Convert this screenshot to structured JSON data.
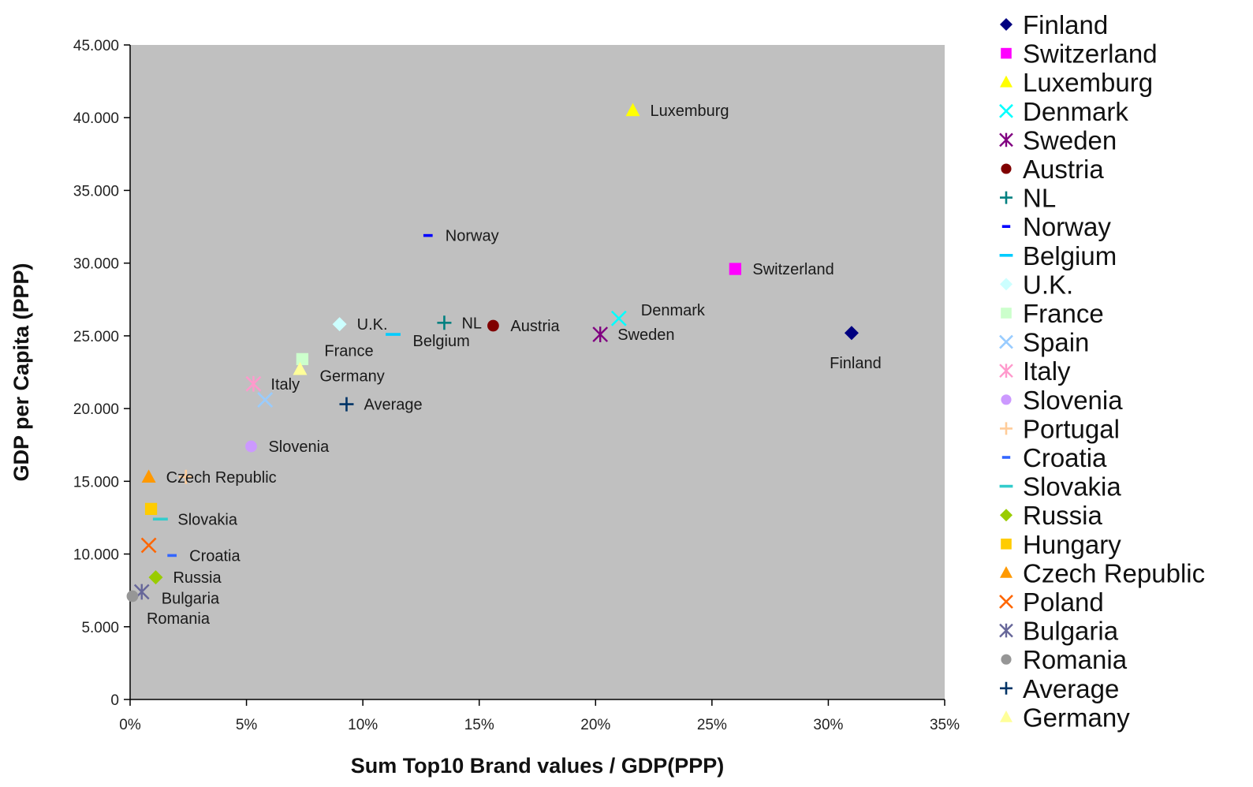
{
  "chart_data": {
    "type": "scatter",
    "xlabel": "Sum Top10 Brand values / GDP(PPP)",
    "ylabel": "GDP per Capita (PPP)",
    "xlim": [
      0,
      35
    ],
    "ylim": [
      0,
      45000
    ],
    "x_ticks": [
      {
        "value": 0,
        "label": "0%"
      },
      {
        "value": 5,
        "label": "5%"
      },
      {
        "value": 10,
        "label": "10%"
      },
      {
        "value": 15,
        "label": "15%"
      },
      {
        "value": 20,
        "label": "20%"
      },
      {
        "value": 25,
        "label": "25%"
      },
      {
        "value": 30,
        "label": "30%"
      },
      {
        "value": 35,
        "label": "35%"
      }
    ],
    "y_ticks": [
      {
        "value": 0,
        "label": "0"
      },
      {
        "value": 5000,
        "label": "5.000"
      },
      {
        "value": 10000,
        "label": "10.000"
      },
      {
        "value": 15000,
        "label": "15.000"
      },
      {
        "value": 20000,
        "label": "20.000"
      },
      {
        "value": 25000,
        "label": "25.000"
      },
      {
        "value": 30000,
        "label": "30.000"
      },
      {
        "value": 35000,
        "label": "35.000"
      },
      {
        "value": 40000,
        "label": "40.000"
      },
      {
        "value": 45000,
        "label": "45.000"
      }
    ],
    "grid": false,
    "background": "#c0c0c0",
    "legend_position": "right",
    "series": [
      {
        "name": "Finland",
        "marker": "diamond",
        "color": "#000080",
        "x": 31.0,
        "y": 25200,
        "label": "Finland",
        "label_pos": "below"
      },
      {
        "name": "Switzerland",
        "marker": "square",
        "color": "#ff00ff",
        "x": 26.0,
        "y": 29600,
        "label": "Switzerland",
        "label_pos": "right"
      },
      {
        "name": "Luxemburg",
        "marker": "triangle",
        "color": "#ffff00",
        "x": 21.6,
        "y": 40500,
        "label": "Luxemburg",
        "label_pos": "right"
      },
      {
        "name": "Denmark",
        "marker": "x",
        "color": "#00ffff",
        "x": 21.0,
        "y": 26200,
        "label": "Denmark",
        "label_pos": "upright"
      },
      {
        "name": "Sweden",
        "marker": "star",
        "color": "#800080",
        "x": 20.2,
        "y": 25100,
        "label": "Sweden",
        "label_pos": "right"
      },
      {
        "name": "Austria",
        "marker": "circle",
        "color": "#800000",
        "x": 15.6,
        "y": 25700,
        "label": "Austria",
        "label_pos": "right"
      },
      {
        "name": "NL",
        "marker": "plus",
        "color": "#008080",
        "x": 13.5,
        "y": 25900,
        "label": "NL",
        "label_pos": "right"
      },
      {
        "name": "Norway",
        "marker": "dash-short",
        "color": "#0000ff",
        "x": 12.8,
        "y": 31900,
        "label": "Norway",
        "label_pos": "right"
      },
      {
        "name": "Belgium",
        "marker": "dash",
        "color": "#00ccff",
        "x": 11.3,
        "y": 25100,
        "label": "Belgium",
        "label_pos": "belowright"
      },
      {
        "name": "U.K.",
        "marker": "diamond",
        "color": "#ccffff",
        "x": 9.0,
        "y": 25800,
        "label": "U.K.",
        "label_pos": "right"
      },
      {
        "name": "France",
        "marker": "square",
        "color": "#ccffcc",
        "x": 7.4,
        "y": 23400,
        "label": "France",
        "label_pos": "upright"
      },
      {
        "name": "Spain",
        "marker": "x",
        "color": "#99ccff",
        "x": 5.8,
        "y": 20600,
        "label": "",
        "label_pos": "none"
      },
      {
        "name": "Italy",
        "marker": "star",
        "color": "#ff99cc",
        "x": 5.3,
        "y": 21700,
        "label": "Italy",
        "label_pos": "right"
      },
      {
        "name": "Slovenia",
        "marker": "circle",
        "color": "#cc99ff",
        "x": 5.2,
        "y": 17400,
        "label": "Slovenia",
        "label_pos": "right"
      },
      {
        "name": "Portugal",
        "marker": "plus",
        "color": "#ffcc99",
        "x": 2.4,
        "y": 15300,
        "label": "",
        "label_pos": "none"
      },
      {
        "name": "Croatia",
        "marker": "dash-short",
        "color": "#3366ff",
        "x": 1.8,
        "y": 9900,
        "label": "Croatia",
        "label_pos": "right"
      },
      {
        "name": "Slovakia",
        "marker": "dash",
        "color": "#33cccc",
        "x": 1.3,
        "y": 12400,
        "label": "Slovakia",
        "label_pos": "right"
      },
      {
        "name": "Russia",
        "marker": "diamond",
        "color": "#99cc00",
        "x": 1.1,
        "y": 8400,
        "label": "Russia",
        "label_pos": "right"
      },
      {
        "name": "Hungary",
        "marker": "square",
        "color": "#ffcc00",
        "x": 0.9,
        "y": 13100,
        "label": "",
        "label_pos": "none"
      },
      {
        "name": "Czech Republic",
        "marker": "triangle",
        "color": "#ff9900",
        "x": 0.8,
        "y": 15300,
        "label": "Czech Republic",
        "label_pos": "right"
      },
      {
        "name": "Poland",
        "marker": "x",
        "color": "#ff6600",
        "x": 0.8,
        "y": 10600,
        "label": "",
        "label_pos": "none"
      },
      {
        "name": "Bulgaria",
        "marker": "star",
        "color": "#666699",
        "x": 0.5,
        "y": 7400,
        "label": "Bulgaria",
        "label_pos": "belowright"
      },
      {
        "name": "Romania",
        "marker": "circle",
        "color": "#969696",
        "x": 0.1,
        "y": 7100,
        "label": "Romania",
        "label_pos": "belowfar"
      },
      {
        "name": "Average",
        "marker": "plus",
        "color": "#003366",
        "x": 9.3,
        "y": 20300,
        "label": "Average",
        "label_pos": "right"
      },
      {
        "name": "Germany",
        "marker": "triangle",
        "color": "#ffff99",
        "x": 7.3,
        "y": 22700,
        "label": "Germany",
        "label_pos": "belowright"
      }
    ]
  }
}
